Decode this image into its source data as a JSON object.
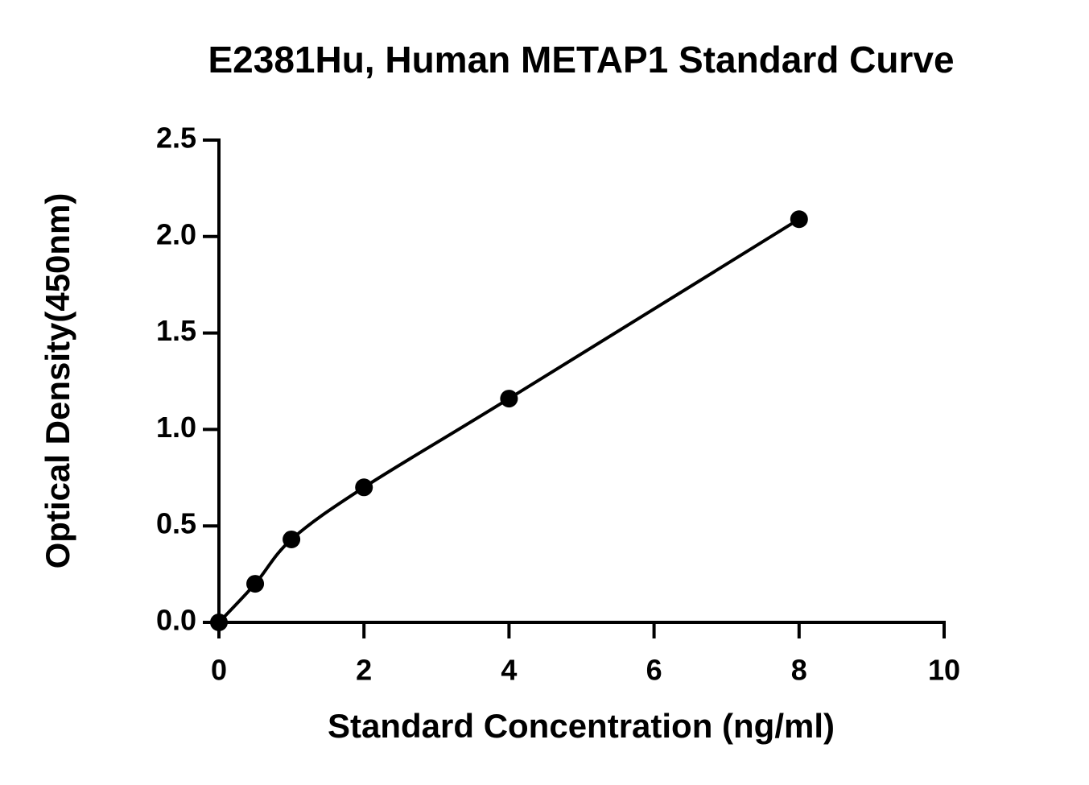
{
  "chart_data": {
    "type": "scatter",
    "title": "E2381Hu, Human METAP1 Standard Curve",
    "x_label": "Standard Concentration (ng/ml)",
    "y_label": "Optical Density(450nm)",
    "x": [
      0,
      0.5,
      1,
      2,
      4,
      8
    ],
    "values": [
      0.0,
      0.2,
      0.43,
      0.7,
      1.16,
      2.09
    ],
    "color": "#000000",
    "curve": true,
    "xlim": [
      0,
      10
    ],
    "xticks": [
      0,
      2,
      4,
      6,
      8,
      10
    ],
    "ylim": [
      0,
      2.5
    ],
    "yticks": [
      {
        "value": 0,
        "label": "0.0"
      },
      0.5,
      {
        "value": 1,
        "label": "1.0"
      },
      1.5,
      {
        "value": 2,
        "label": "2.0"
      },
      2.5
    ],
    "grid": false
  }
}
